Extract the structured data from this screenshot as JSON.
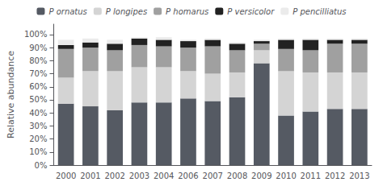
{
  "chart_data": {
    "type": "bar",
    "stacked": true,
    "categories": [
      "2000",
      "2001",
      "2002",
      "2003",
      "2004",
      "2006",
      "2007",
      "2008",
      "2009",
      "2010",
      "2011",
      "2012",
      "2013"
    ],
    "series": [
      {
        "name": "P ornatus",
        "color": "#555a63",
        "values": [
          47,
          45,
          42,
          48,
          48,
          51,
          49,
          52,
          78,
          38,
          41,
          43,
          43
        ]
      },
      {
        "name": "P longipes",
        "color": "#d4d4d4",
        "values": [
          20,
          27,
          30,
          27,
          27,
          21,
          21,
          19,
          10,
          34,
          30,
          28,
          28
        ]
      },
      {
        "name": "P homarus",
        "color": "#a0a0a0",
        "values": [
          22,
          18,
          16,
          17,
          16,
          18,
          21,
          17,
          5,
          17,
          17,
          22,
          22
        ]
      },
      {
        "name": "P versicolor",
        "color": "#222222",
        "values": [
          3,
          4,
          5,
          5,
          5,
          5,
          5,
          5,
          2,
          7,
          8,
          3,
          3
        ]
      },
      {
        "name": "P pencilliatus",
        "color": "#ebebeb",
        "values": [
          4,
          3,
          3,
          1,
          2,
          1,
          1,
          1,
          1,
          1,
          1,
          1,
          1
        ]
      }
    ],
    "ylabel": "Relative abundance",
    "ylim": [
      0,
      108
    ],
    "yticks": [
      {
        "value": 0,
        "label": "0%"
      },
      {
        "value": 10,
        "label": "10%"
      },
      {
        "value": 20,
        "label": "20%"
      },
      {
        "value": 30,
        "label": "30%"
      },
      {
        "value": 40,
        "label": "40%"
      },
      {
        "value": 50,
        "label": "50%"
      },
      {
        "value": 60,
        "label": "60%"
      },
      {
        "value": 70,
        "label": "70%"
      },
      {
        "value": 80,
        "label": "80%"
      },
      {
        "value": 90,
        "label": "90%"
      },
      {
        "value": 100,
        "label": "100%"
      }
    ],
    "grid": false,
    "legend": "top"
  }
}
